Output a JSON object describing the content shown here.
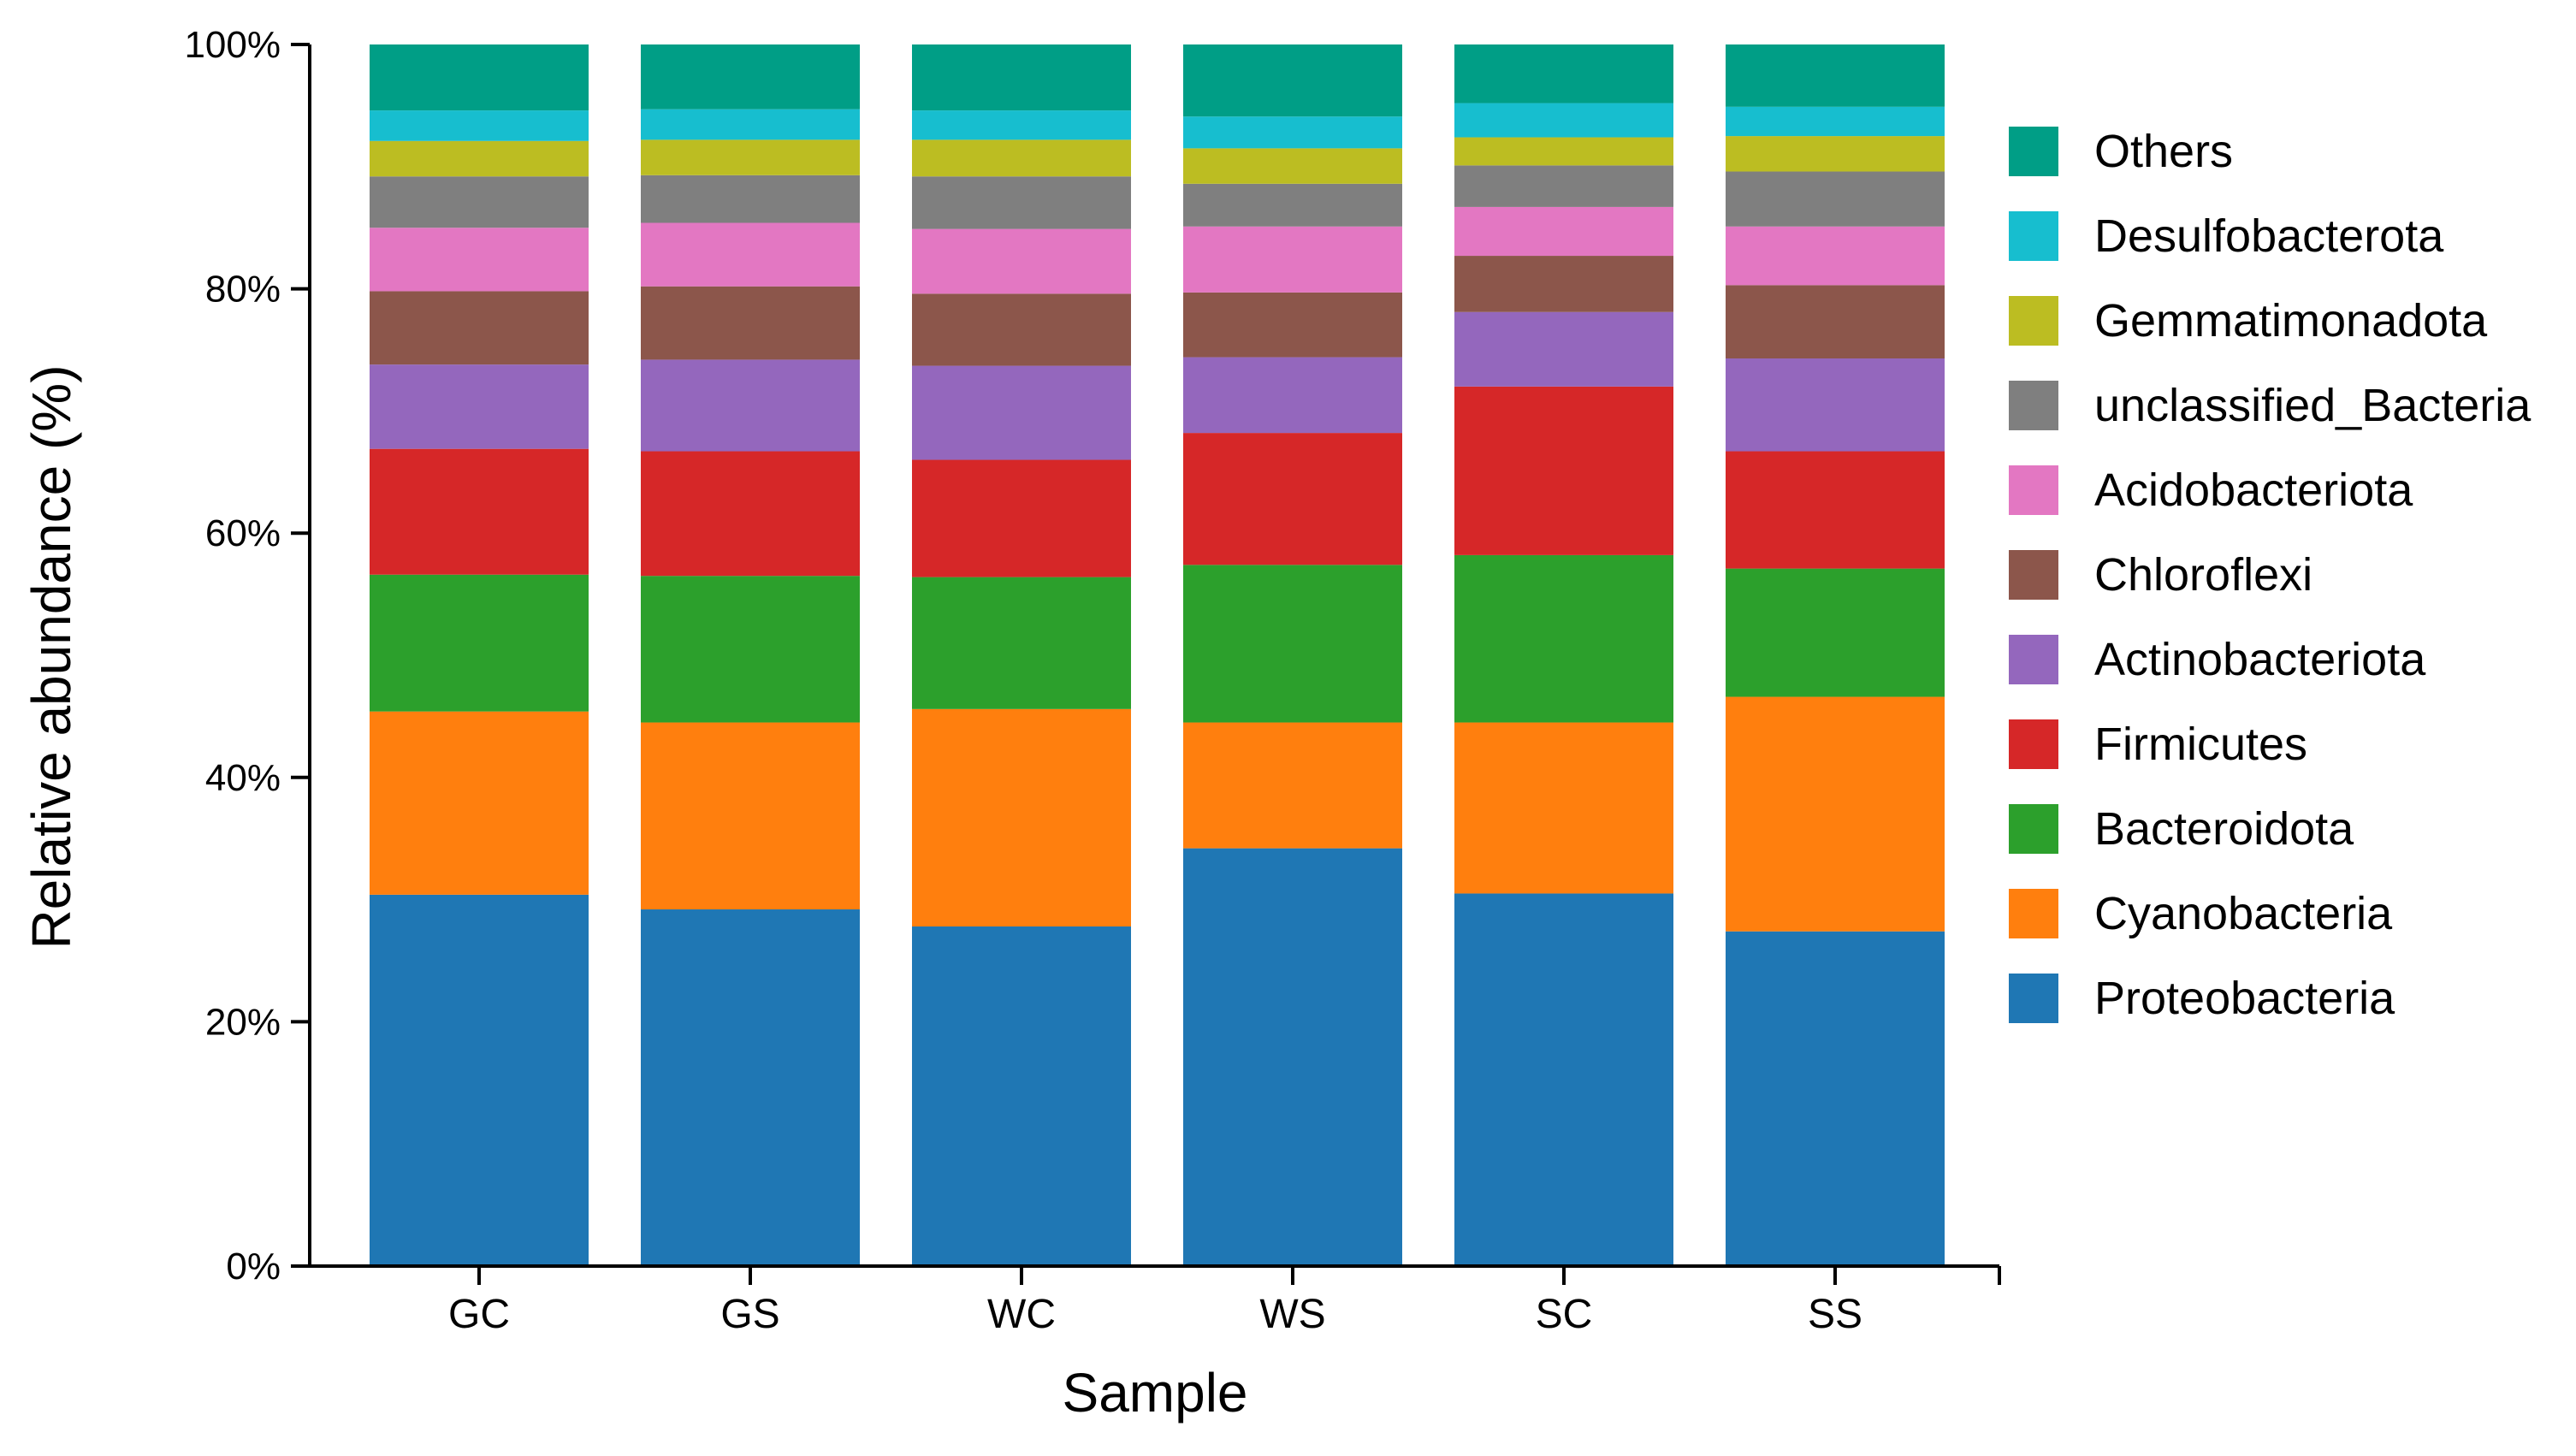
{
  "chart_data": {
    "type": "bar",
    "stacked": true,
    "title": "",
    "xlabel": "Sample",
    "ylabel": "Relative abundance (%)",
    "ylim": [
      0,
      100
    ],
    "yticks": [
      0,
      20,
      40,
      60,
      80,
      100
    ],
    "ytick_labels": [
      "0%",
      "20%",
      "40%",
      "60%",
      "80%",
      "100%"
    ],
    "categories": [
      "GC",
      "GS",
      "WC",
      "WS",
      "SC",
      "SS"
    ],
    "legend_position": "right",
    "series": [
      {
        "name": "Proteobacteria",
        "color": "#1f77b4",
        "values": [
          30.4,
          29.2,
          27.8,
          34.2,
          30.5,
          27.4
        ]
      },
      {
        "name": "Cyanobacteria",
        "color": "#ff7f0e",
        "values": [
          15.0,
          15.3,
          17.8,
          10.3,
          14.0,
          19.2
        ]
      },
      {
        "name": "Bacteroidota",
        "color": "#2ca02c",
        "values": [
          11.2,
          12.0,
          10.8,
          12.9,
          13.7,
          10.5
        ]
      },
      {
        "name": "Firmicutes",
        "color": "#d62728",
        "values": [
          10.3,
          10.2,
          9.6,
          10.8,
          13.8,
          9.6
        ]
      },
      {
        "name": "Actinobacteriota",
        "color": "#9467bd",
        "values": [
          6.9,
          7.5,
          7.7,
          6.2,
          6.1,
          7.6
        ]
      },
      {
        "name": "Chloroflexi",
        "color": "#8c564b",
        "values": [
          6.0,
          6.0,
          5.9,
          5.3,
          4.6,
          6.0
        ]
      },
      {
        "name": "Acidobacteriota",
        "color": "#e377c2",
        "values": [
          5.2,
          5.2,
          5.3,
          5.4,
          4.0,
          4.8
        ]
      },
      {
        "name": "unclassified_Bacteria",
        "color": "#7f7f7f",
        "values": [
          4.2,
          3.9,
          4.3,
          3.5,
          3.4,
          4.5
        ]
      },
      {
        "name": "Gemmatimonadota",
        "color": "#bcbd22",
        "values": [
          2.9,
          2.9,
          3.0,
          2.9,
          2.3,
          2.9
        ]
      },
      {
        "name": "Desulfobacterota",
        "color": "#17becf",
        "values": [
          2.5,
          2.5,
          2.4,
          2.6,
          2.8,
          2.4
        ]
      },
      {
        "name": "Others",
        "color": "#009e86",
        "values": [
          5.4,
          5.3,
          5.4,
          5.9,
          4.8,
          5.1
        ]
      }
    ]
  }
}
